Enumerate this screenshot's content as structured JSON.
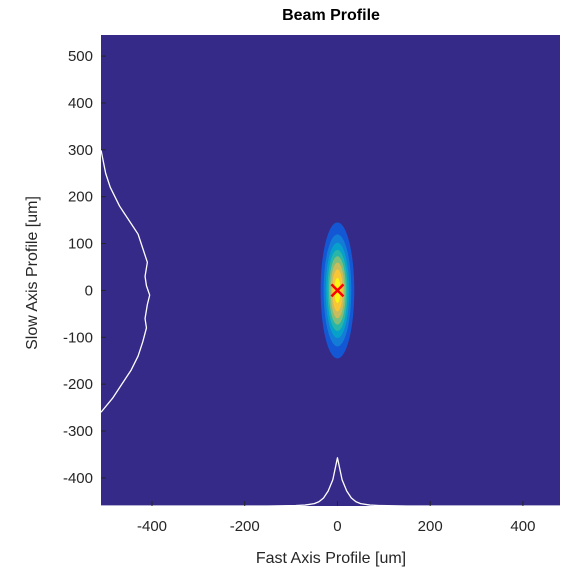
{
  "chart_data": {
    "type": "heatmap",
    "title": "Beam Profile",
    "xlabel": "Fast Axis Profile [um]",
    "ylabel": "Slow Axis Profile [um]",
    "xlim": [
      -510,
      480
    ],
    "ylim": [
      -460,
      545
    ],
    "x_ticks": [
      -400,
      -200,
      0,
      200,
      400
    ],
    "y_ticks": [
      500,
      400,
      300,
      200,
      100,
      0,
      -100,
      -200,
      -300,
      -400
    ],
    "grid": false,
    "background_color": "#352a87",
    "colormap": [
      "#352a87",
      "#0f5cdd",
      "#1481d6",
      "#06a4ca",
      "#2eb7a4",
      "#87bf77",
      "#d1bb59",
      "#fec832",
      "#f9fb0e"
    ],
    "marker": {
      "symbol": "x",
      "x": 0,
      "y": 0,
      "color": "#ff0000"
    },
    "beam": {
      "center": [
        0,
        0
      ],
      "fast_axis_sigma_um": 14,
      "slow_axis_sigma_um": 70
    },
    "series": [
      {
        "type": "fast-axis-profile-line",
        "color": "#ffffff",
        "x": [
          -510,
          -150,
          -90,
          -70,
          -50,
          -40,
          -30,
          -20,
          -10,
          0,
          10,
          20,
          30,
          40,
          50,
          70,
          90,
          150,
          480
        ],
        "y": [
          -460,
          -460,
          -459,
          -458,
          -455,
          -451,
          -443,
          -428,
          -404,
          -357,
          -404,
          -428,
          -443,
          -451,
          -455,
          -458,
          -459,
          -460,
          -460
        ]
      },
      {
        "type": "slow-axis-profile-line",
        "color": "#ffffff",
        "x": [
          -510,
          -500,
          -490,
          -480,
          -470,
          -460,
          -450,
          -440,
          -430,
          -420,
          -410,
          -415,
          -412,
          -405,
          -410,
          -415,
          -412,
          -420,
          -430,
          -445,
          -465,
          -485,
          -510
        ],
        "y": [
          300,
          250,
          220,
          200,
          180,
          165,
          150,
          135,
          120,
          90,
          60,
          30,
          10,
          -10,
          -30,
          -60,
          -80,
          -110,
          -140,
          -170,
          -200,
          -230,
          -260
        ]
      }
    ]
  }
}
